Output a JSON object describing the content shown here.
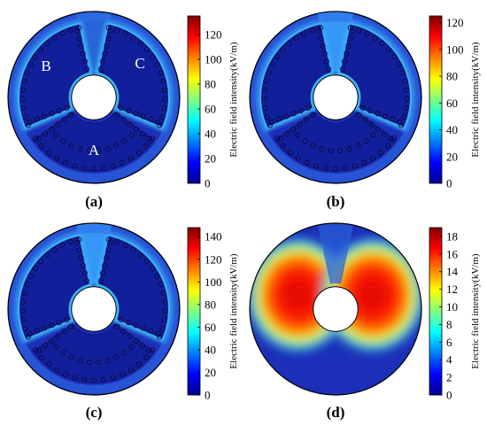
{
  "panels": [
    {
      "caption": "(a)",
      "colorbar": {
        "label": "Electric field intensity(kV/m)",
        "ticks": [
          "0",
          "20",
          "40",
          "60",
          "80",
          "100",
          "120"
        ],
        "max": 135
      },
      "segment_labels": [
        "A",
        "B",
        "C"
      ]
    },
    {
      "caption": "(b)",
      "colorbar": {
        "label": "Electric field intensity(kV/m)",
        "ticks": [
          "0",
          "20",
          "40",
          "60",
          "80",
          "100",
          "120"
        ],
        "max": 125
      }
    },
    {
      "caption": "(c)",
      "colorbar": {
        "label": "Electric field intensity(kV/m)",
        "ticks": [
          "0",
          "20",
          "40",
          "60",
          "80",
          "100",
          "120",
          "140"
        ],
        "max": 148
      }
    },
    {
      "caption": "(d)",
      "colorbar": {
        "label": "Electric field intensity(kV/m)",
        "ticks": [
          "0",
          "2",
          "4",
          "6",
          "8",
          "10",
          "12",
          "14",
          "16",
          "18"
        ],
        "max": 19
      }
    }
  ],
  "colors": {
    "background_field": "#1c2fb8",
    "jet_scale": [
      "#00008f",
      "#0000ff",
      "#0080ff",
      "#00ffff",
      "#80ff80",
      "#ffff00",
      "#ff8000",
      "#ff0000",
      "#800000"
    ]
  }
}
